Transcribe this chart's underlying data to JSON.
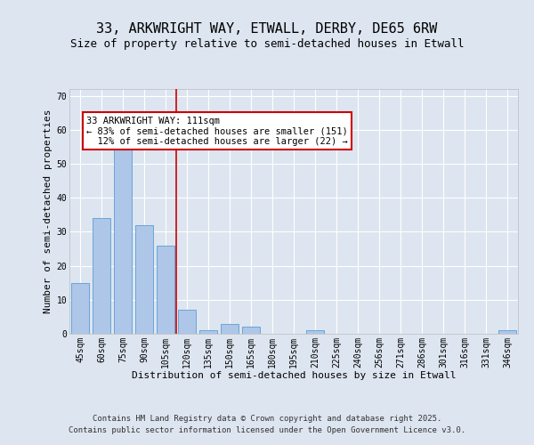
{
  "title_line1": "33, ARKWRIGHT WAY, ETWALL, DERBY, DE65 6RW",
  "title_line2": "Size of property relative to semi-detached houses in Etwall",
  "xlabel": "Distribution of semi-detached houses by size in Etwall",
  "ylabel": "Number of semi-detached properties",
  "categories": [
    "45sqm",
    "60sqm",
    "75sqm",
    "90sqm",
    "105sqm",
    "120sqm",
    "135sqm",
    "150sqm",
    "165sqm",
    "180sqm",
    "195sqm",
    "210sqm",
    "225sqm",
    "240sqm",
    "256sqm",
    "271sqm",
    "286sqm",
    "301sqm",
    "316sqm",
    "331sqm",
    "346sqm"
  ],
  "values": [
    15,
    34,
    55,
    32,
    26,
    7,
    1,
    3,
    2,
    0,
    0,
    1,
    0,
    0,
    0,
    0,
    0,
    0,
    0,
    0,
    1
  ],
  "bar_color": "#aec6e8",
  "bar_edge_color": "#5a9fd4",
  "fig_bg_color": "#dde5f0",
  "plot_bg_color": "#dde5f0",
  "red_line_x": 4.5,
  "annotation_text": "33 ARKWRIGHT WAY: 111sqm\n← 83% of semi-detached houses are smaller (151)\n  12% of semi-detached houses are larger (22) →",
  "annotation_box_color": "#ffffff",
  "annotation_border_color": "#cc0000",
  "red_line_color": "#cc0000",
  "ylim": [
    0,
    72
  ],
  "yticks": [
    0,
    10,
    20,
    30,
    40,
    50,
    60,
    70
  ],
  "footer_line1": "Contains HM Land Registry data © Crown copyright and database right 2025.",
  "footer_line2": "Contains public sector information licensed under the Open Government Licence v3.0.",
  "title_fontsize": 11,
  "subtitle_fontsize": 9,
  "axis_label_fontsize": 8,
  "tick_fontsize": 7,
  "annotation_fontsize": 7.5,
  "footer_fontsize": 6.5
}
